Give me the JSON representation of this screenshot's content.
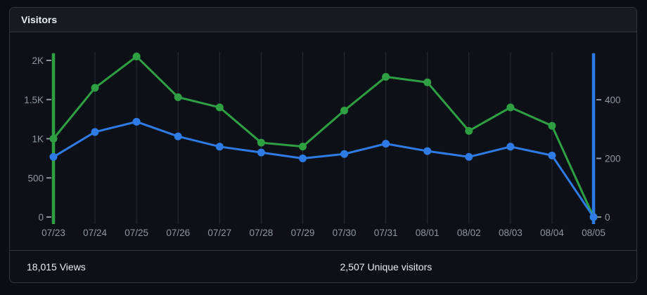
{
  "card": {
    "title": "Visitors",
    "footer": {
      "views_total": "18,015",
      "views_label": "Views",
      "unique_total": "2,507",
      "unique_label": "Unique visitors"
    }
  },
  "chart_data": {
    "type": "line",
    "title": "Visitors",
    "x": [
      "07/23",
      "07/24",
      "07/25",
      "07/26",
      "07/27",
      "07/28",
      "07/29",
      "07/30",
      "07/31",
      "08/01",
      "08/02",
      "08/03",
      "08/04",
      "08/05"
    ],
    "series": [
      {
        "name": "Views",
        "axis": "left",
        "color": "#2ea043",
        "values": [
          1000,
          1650,
          2050,
          1530,
          1400,
          950,
          900,
          1360,
          1790,
          1720,
          1100,
          1400,
          1165,
          0
        ]
      },
      {
        "name": "Unique visitors",
        "axis": "right",
        "color": "#2f7be5",
        "values": [
          205,
          290,
          325,
          275,
          240,
          220,
          200,
          215,
          250,
          225,
          205,
          240,
          210,
          0
        ]
      }
    ],
    "left_axis": {
      "ticks": [
        0,
        500,
        1000,
        1500,
        2000
      ],
      "tick_labels": [
        "0",
        "500",
        "1K",
        "1.5K",
        "2K"
      ],
      "ylim": [
        0,
        2090
      ],
      "color": "#2ea043"
    },
    "right_axis": {
      "ticks": [
        0,
        200,
        400
      ],
      "tick_labels": [
        "0",
        "200",
        "400"
      ],
      "ylim": [
        0,
        558
      ],
      "color": "#2f7be5"
    },
    "grid": "vertical",
    "grid_color": "#262c36",
    "tick_text_color": "#8d96a0",
    "legend_position": "none"
  }
}
